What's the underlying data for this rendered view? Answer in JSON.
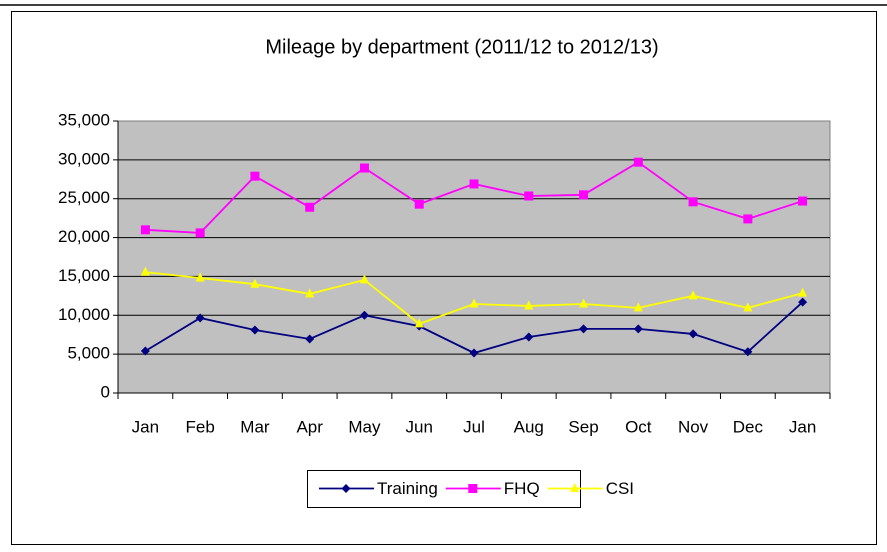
{
  "chart_data": {
    "type": "line",
    "title": "Mileage by department (2011/12  to 2012/13)",
    "categories": [
      "Jan",
      "Feb",
      "Mar",
      "Apr",
      "May",
      "Jun",
      "Jul",
      "Aug",
      "Sep",
      "Oct",
      "Nov",
      "Dec",
      "Jan"
    ],
    "series": [
      {
        "name": "Training",
        "color": "#000080",
        "marker": "diamond",
        "values": [
          5400,
          9650,
          8100,
          6950,
          10000,
          8600,
          5150,
          7200,
          8250,
          8250,
          7600,
          5300,
          11700
        ]
      },
      {
        "name": "FHQ",
        "color": "#ff00ff",
        "marker": "square",
        "values": [
          21000,
          20600,
          27900,
          23900,
          28950,
          24300,
          26900,
          25350,
          25500,
          29700,
          24600,
          22400,
          24700
        ]
      },
      {
        "name": "CSI",
        "color": "#ffff00",
        "marker": "triangle",
        "values": [
          15550,
          14800,
          14000,
          12750,
          14550,
          8900,
          11450,
          11200,
          11450,
          10950,
          12500,
          10950,
          12850
        ]
      }
    ],
    "ylim": [
      0,
      35000
    ],
    "yticks": [
      0,
      {
        "value": 5000,
        "label": "5,000"
      },
      {
        "value": 10000,
        "label": "10,000"
      },
      {
        "value": 15000,
        "label": "15,000"
      },
      {
        "value": 20000,
        "label": "20,000"
      },
      {
        "value": 25000,
        "label": "25,000"
      },
      {
        "value": 30000,
        "label": "30,000"
      },
      {
        "value": 35000,
        "label": "35,000"
      }
    ],
    "grid": true,
    "legend": "bottom"
  }
}
